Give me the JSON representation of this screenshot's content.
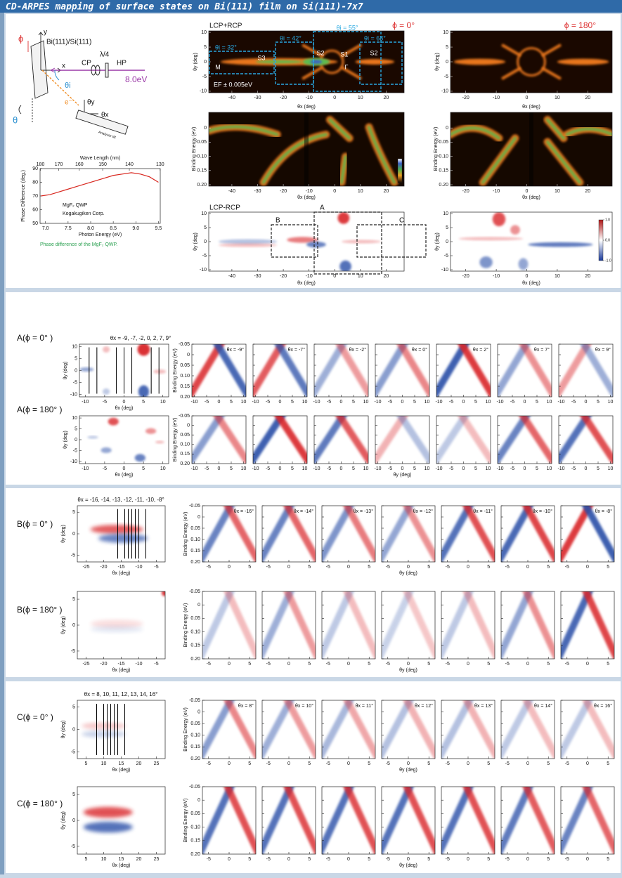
{
  "title": "CD-ARPES mapping of surface states on Bi(111) film on Si(111)-7x7",
  "schematic": {
    "phi": "ϕ",
    "sample": "Bi(111)/Si(111)",
    "y": "y",
    "x": "x",
    "cp": "CP",
    "qwp": "λ/4",
    "hp": "HP",
    "energy": "8.0eV",
    "theta_i": "θi",
    "electron": "e⁻",
    "theta_y": "θy",
    "theta_x": "θx",
    "theta": "θ",
    "tilt": "Analyzer tilt"
  },
  "phase_chart": {
    "title": "Wave Length (nm)",
    "top_ticks": [
      180,
      170,
      160,
      150,
      140,
      130
    ],
    "x_label": "Photon Energy (eV)",
    "y_label": "Phase Difference (deg.)",
    "xlim": [
      6.88,
      9.54
    ],
    "ylim": [
      50,
      90
    ],
    "xticks": [
      {
        "value": 7,
        "label": "7.0"
      },
      7.5,
      {
        "value": 8,
        "label": "8.0"
      },
      8.5,
      {
        "value": 9,
        "label": "9.0"
      },
      9.5
    ],
    "yticks": [
      50,
      60,
      70,
      80,
      90
    ],
    "notes": [
      "MgF₂ QWP",
      "Kogakugiken Corp."
    ],
    "caption": "Phase difference of the MgF₂ QWP.",
    "color": "#d8261e",
    "x": [
      6.9,
      7.1,
      7.3,
      7.5,
      7.7,
      7.9,
      8.1,
      8.3,
      8.5,
      8.7,
      8.9,
      9.1,
      9.3,
      9.5
    ],
    "values": [
      70,
      71,
      73,
      75,
      77,
      79,
      81,
      83,
      85,
      86,
      87,
      86,
      84,
      80
    ]
  },
  "labels": {
    "theta_x": "θx (deg)",
    "theta_y": "θy (deg)",
    "binding_energy": "Binding Energy (eV)"
  },
  "overview": {
    "sum_label": "LCP+RCP",
    "diff_label": "LCP-RCP",
    "phi0": "ϕ = 0°",
    "phi180": "ϕ = 180°",
    "regions": [
      "θi = 32°",
      "θi = 42°",
      "θi = 55°",
      "θi = 68°"
    ],
    "points": [
      "M",
      "S3",
      "S2",
      "S1",
      "Γ",
      "S2"
    ],
    "ef": "EF ± 0.005eV",
    "boxes": [
      "A",
      "B",
      "C"
    ],
    "wide_xlim": [
      -49,
      27
    ],
    "wide_xticks": [
      -40,
      -30,
      -20,
      -10,
      0,
      10,
      20
    ],
    "narrow_xlim": [
      -25,
      28
    ],
    "narrow_xticks": [
      -20,
      -10,
      0,
      10,
      20
    ],
    "angle_ylim": [
      -10.5,
      10.5
    ],
    "angle_yticks": [
      -10,
      -5,
      0,
      5,
      10
    ],
    "be_ylim": [
      -0.055,
      0.205
    ],
    "be_yticks": [
      0,
      0.05,
      {
        "value": 0.1,
        "label": "0.10"
      },
      0.15,
      {
        "value": 0.2,
        "label": "0.20"
      }
    ],
    "colorbar_lim": [
      -1,
      1
    ],
    "colorbar_ticks": [
      {
        "value": 1,
        "label": "1.0"
      },
      {
        "value": 0,
        "label": "0.0"
      },
      {
        "value": -1,
        "label": "-1.0"
      }
    ]
  },
  "sections": [
    {
      "header": "θx = -9, -7, -2, 0, 2, 7, 9°",
      "cuts": [
        -9,
        -7,
        -2,
        0,
        2,
        7,
        9
      ],
      "rows": [
        {
          "label": "A(ϕ = 0° )",
          "panels": [
            "θx = -9°",
            "θx = -7°",
            "θx = -2°",
            "θx = 0°",
            "θx = 2°",
            "θx = 7°",
            "θx = 9°"
          ]
        },
        {
          "label": "A(ϕ = 180° )"
        }
      ],
      "map_xlim": [
        -11.5,
        11.5
      ],
      "map_xticks": [
        -10,
        -5,
        0,
        5,
        10
      ],
      "map_ylim": [
        -11,
        11
      ],
      "map_yticks": [
        -10,
        -5,
        0,
        5,
        10
      ],
      "band_xlim": [
        -11,
        11
      ],
      "band_xticks": [
        -10,
        -5,
        0,
        5,
        10
      ],
      "be_ylim": [
        -0.05,
        0.2
      ],
      "be_yticks": [
        -0.05,
        0,
        0.05,
        {
          "value": 0.1,
          "label": "0.10"
        },
        0.15,
        {
          "value": 0.2,
          "label": "0.20"
        }
      ]
    },
    {
      "header": "θx = -16, -14, -13, -12, -11, -10, -8°",
      "cuts": [
        -16,
        -14,
        -13,
        -12,
        -11,
        -10,
        -8
      ],
      "rows": [
        {
          "label": "B(ϕ = 0° )",
          "panels": [
            "θx = -16°",
            "θx = -14°",
            "θx = -13°",
            "θx = -12°",
            "θx = -11°",
            "θx = -10°",
            "θx = -8°"
          ]
        },
        {
          "label": "B(ϕ = 180° )"
        }
      ],
      "map_xlim": [
        -27.5,
        -2.5
      ],
      "map_xticks": [
        -25,
        -20,
        -15,
        -10,
        -5
      ],
      "map_ylim": [
        -6.5,
        6.5
      ],
      "map_yticks": [
        -5,
        0,
        5
      ],
      "band_xlim": [
        -6.5,
        6.5
      ],
      "band_xticks": [
        -5,
        0,
        5
      ],
      "be_ylim": [
        -0.05,
        0.2
      ],
      "be_yticks": [
        -0.05,
        0,
        0.05,
        {
          "value": 0.1,
          "label": "0.10"
        },
        0.15,
        {
          "value": 0.2,
          "label": "0.20"
        }
      ]
    },
    {
      "header": "θx = 8, 10, 11, 12, 13, 14, 16°",
      "cuts": [
        8,
        10,
        11,
        12,
        13,
        14,
        16
      ],
      "rows": [
        {
          "label": "C(ϕ = 0° )",
          "panels": [
            "θx = 8°",
            "θx = 10°",
            "θx = 11°",
            "θx = 12°",
            "θx = 13°",
            "θx = 14°",
            "θx = 16°"
          ]
        },
        {
          "label": "C(ϕ = 180° )"
        }
      ],
      "map_xlim": [
        2.5,
        27.5
      ],
      "map_xticks": [
        5,
        10,
        15,
        20,
        25
      ],
      "map_ylim": [
        -6.5,
        6.5
      ],
      "map_yticks": [
        -5,
        0,
        5
      ],
      "band_xlim": [
        -6.5,
        6.5
      ],
      "band_xticks": [
        -5,
        0,
        5
      ],
      "be_ylim": [
        -0.05,
        0.2
      ],
      "be_yticks": [
        -0.05,
        0,
        0.05,
        {
          "value": 0.1,
          "label": "0.10"
        },
        0.15,
        {
          "value": 0.2,
          "label": "0.20"
        }
      ]
    }
  ]
}
